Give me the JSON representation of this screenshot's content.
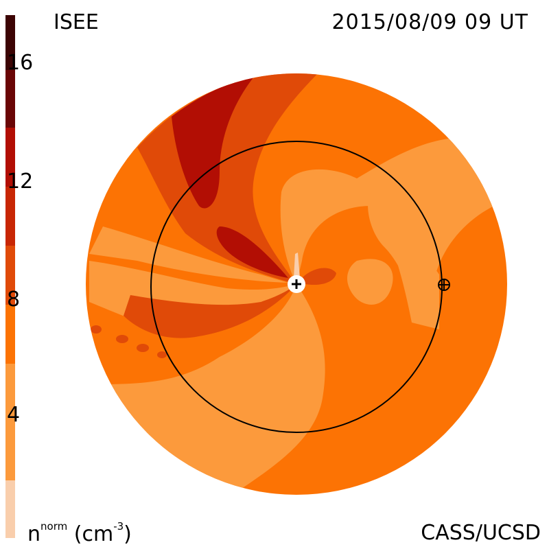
{
  "header": {
    "org": "ISEE",
    "timestamp": "2015/08/09 09 UT"
  },
  "footer": {
    "credit": "CASS/UCSD",
    "unit_base": "n",
    "unit_sup": "norm",
    "unit_rest": " (cm",
    "unit_exp": "-3",
    "unit_close": ")"
  },
  "colorbar": {
    "ticks": [
      "4",
      "8",
      "12",
      "16"
    ],
    "tick_values": [
      4,
      8,
      12,
      16
    ],
    "range": [
      0,
      18
    ],
    "levels": [
      "#f9ceac",
      "#fc9a3c",
      "#fc7304",
      "#e04a08",
      "#c82604",
      "#b20e04",
      "#8c0404",
      "#6a0606",
      "#3c0404"
    ]
  },
  "map": {
    "sun_marker": "plus-in-circle",
    "earth_marker": "earth-symbol"
  },
  "colors": {
    "background": "#ffffff",
    "orbit": "#000000"
  }
}
